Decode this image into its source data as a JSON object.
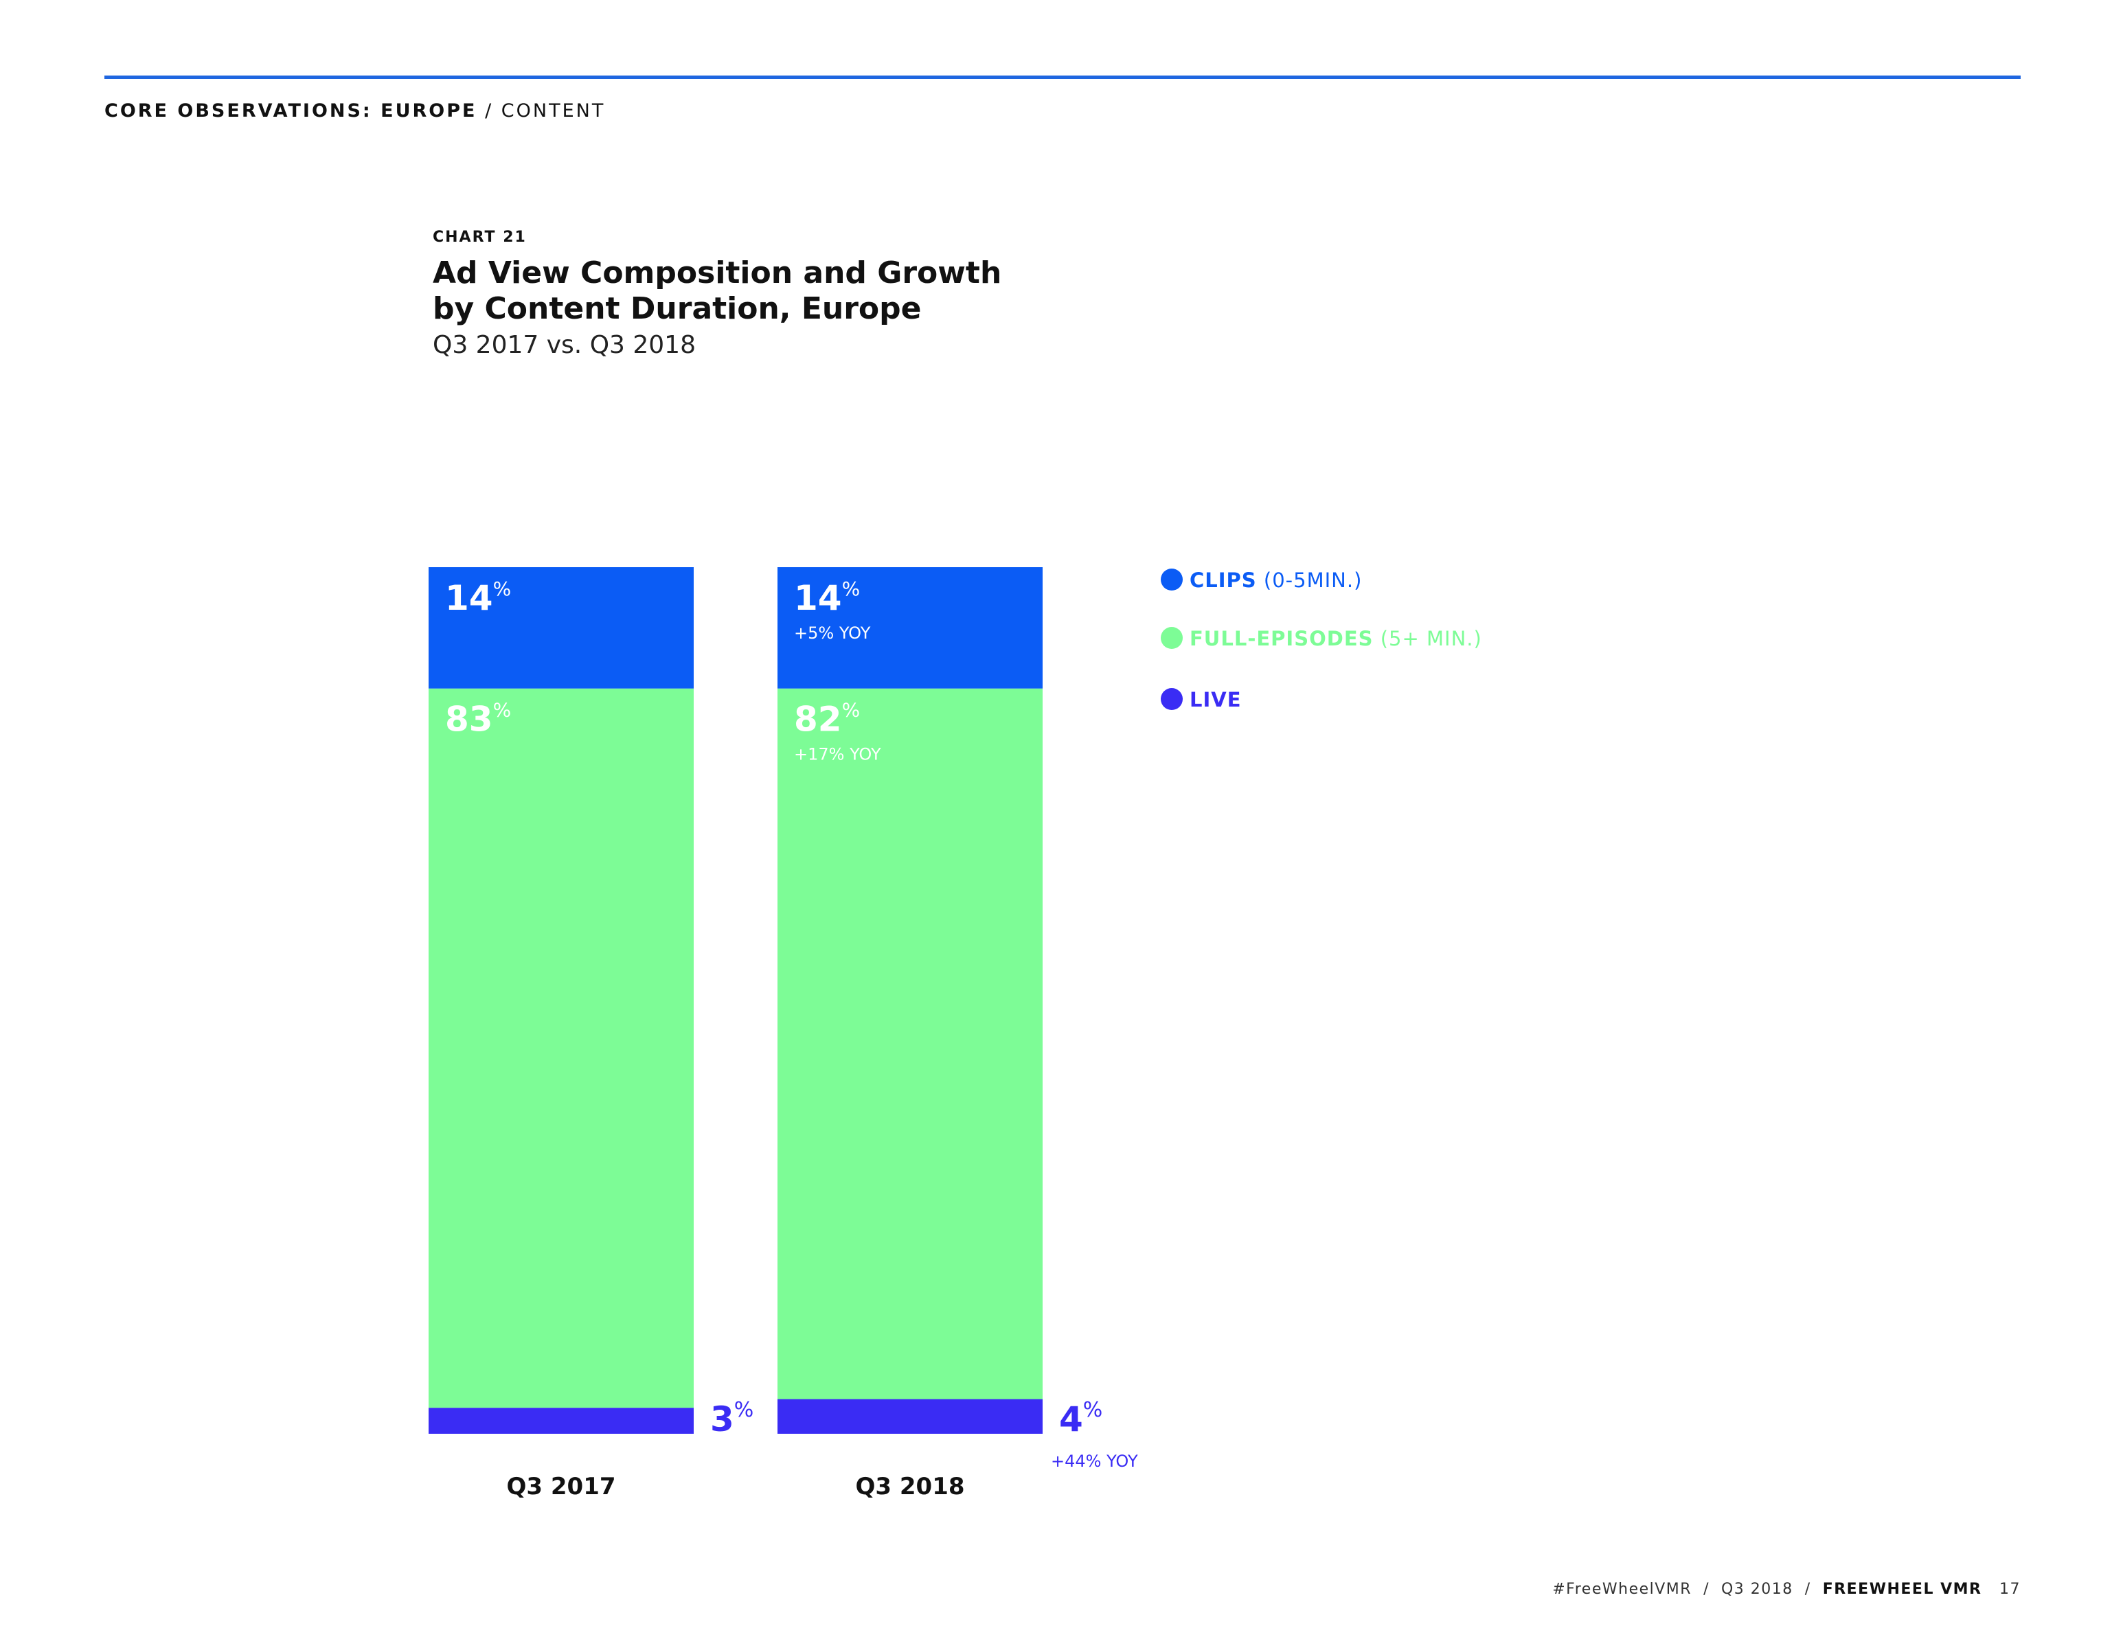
{
  "header": {
    "section": "CORE OBSERVATIONS: EUROPE",
    "separator": "/",
    "subsection": "CONTENT"
  },
  "chart_header": {
    "number": "CHART 21",
    "title_line1": "Ad View Composition and Growth",
    "title_line2": "by Content Duration, Europe",
    "subtitle": "Q3 2017 vs. Q3 2018"
  },
  "legend": {
    "items": [
      {
        "label": "CLIPS",
        "range": "(0-5MIN.)",
        "color": "#0b5cf5"
      },
      {
        "label": "FULL-EPISODES",
        "range": "(5+ MIN.)",
        "color": "#7dfc96"
      },
      {
        "label": "LIVE",
        "range": "",
        "color": "#3a2cf4"
      }
    ]
  },
  "colors": {
    "clips": "#0b5cf5",
    "full_episodes": "#7dfc96",
    "live": "#3a2cf4",
    "accent_rule": "#1f66e0"
  },
  "chart_data": {
    "type": "bar",
    "stacked": true,
    "categories": [
      "Q3 2017",
      "Q3 2018"
    ],
    "series": [
      {
        "name": "LIVE",
        "values": [
          3,
          4
        ],
        "yoy": [
          null,
          "+44% YOY"
        ],
        "color": "#3a2cf4"
      },
      {
        "name": "FULL-EPISODES",
        "values": [
          83,
          82
        ],
        "yoy": [
          null,
          "+17% YOY"
        ],
        "color": "#7dfc96"
      },
      {
        "name": "CLIPS",
        "values": [
          14,
          14
        ],
        "yoy": [
          null,
          "+5% YOY"
        ],
        "color": "#0b5cf5"
      }
    ],
    "value_suffix": "%",
    "ylim": [
      0,
      100
    ],
    "legend_position": "right",
    "grid": false
  },
  "footer": {
    "hashtag": "#FreeWheelVMR",
    "period": "Q3 2018",
    "brand": "FREEWHEEL VMR",
    "page": "17"
  }
}
